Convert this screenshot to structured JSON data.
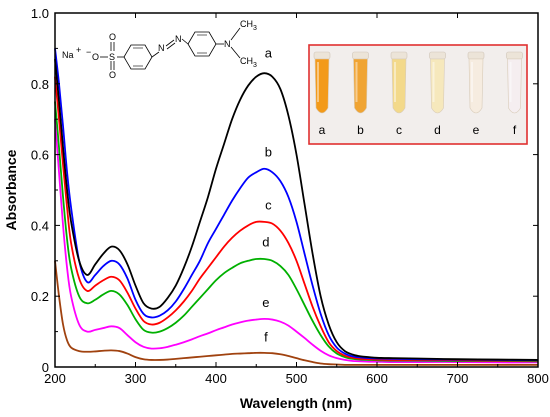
{
  "chart_data": {
    "type": "line",
    "xlabel": "Wavelength (nm)",
    "ylabel": "Absorbance",
    "xlim": [
      200,
      800
    ],
    "ylim": [
      0,
      1.0
    ],
    "xticks": [
      200,
      300,
      400,
      500,
      600,
      700,
      800
    ],
    "yticks": [
      0,
      0.2,
      0.4,
      0.6,
      0.8,
      1.0
    ],
    "ytick_labels": [
      "0",
      "0.2",
      "0.4",
      "0.6",
      "0.8",
      "1.0"
    ],
    "x": [
      200,
      205,
      210,
      215,
      220,
      230,
      240,
      250,
      260,
      270,
      280,
      290,
      300,
      310,
      320,
      330,
      340,
      350,
      360,
      370,
      380,
      390,
      400,
      410,
      420,
      430,
      440,
      450,
      460,
      470,
      480,
      490,
      500,
      510,
      520,
      530,
      540,
      550,
      560,
      570,
      580,
      590,
      600,
      620,
      650,
      700,
      750,
      800
    ],
    "series": [
      {
        "name": "a",
        "color": "#000000",
        "values": [
          0.87,
          0.75,
          0.62,
          0.5,
          0.41,
          0.3,
          0.26,
          0.29,
          0.32,
          0.34,
          0.33,
          0.29,
          0.23,
          0.18,
          0.165,
          0.17,
          0.195,
          0.23,
          0.28,
          0.34,
          0.41,
          0.48,
          0.56,
          0.63,
          0.7,
          0.755,
          0.795,
          0.82,
          0.83,
          0.82,
          0.785,
          0.71,
          0.6,
          0.46,
          0.32,
          0.2,
          0.12,
          0.07,
          0.045,
          0.035,
          0.03,
          0.028,
          0.026,
          0.025,
          0.024,
          0.022,
          0.021,
          0.02
        ]
      },
      {
        "name": "b",
        "color": "#0000ff",
        "values": [
          0.9,
          0.8,
          0.68,
          0.55,
          0.45,
          0.3,
          0.24,
          0.26,
          0.285,
          0.3,
          0.29,
          0.25,
          0.19,
          0.15,
          0.14,
          0.145,
          0.16,
          0.185,
          0.22,
          0.26,
          0.3,
          0.35,
          0.39,
          0.43,
          0.47,
          0.505,
          0.535,
          0.55,
          0.56,
          0.55,
          0.525,
          0.48,
          0.41,
          0.32,
          0.23,
          0.15,
          0.09,
          0.055,
          0.038,
          0.03,
          0.027,
          0.025,
          0.024,
          0.023,
          0.022,
          0.021,
          0.02,
          0.019
        ]
      },
      {
        "name": "c",
        "color": "#ff0000",
        "values": [
          0.82,
          0.7,
          0.57,
          0.45,
          0.35,
          0.25,
          0.215,
          0.23,
          0.245,
          0.255,
          0.245,
          0.21,
          0.165,
          0.13,
          0.12,
          0.125,
          0.14,
          0.16,
          0.185,
          0.215,
          0.25,
          0.28,
          0.31,
          0.34,
          0.365,
          0.385,
          0.4,
          0.41,
          0.41,
          0.405,
          0.385,
          0.35,
          0.3,
          0.235,
          0.17,
          0.115,
          0.07,
          0.045,
          0.032,
          0.026,
          0.023,
          0.022,
          0.021,
          0.02,
          0.02,
          0.019,
          0.018,
          0.018
        ]
      },
      {
        "name": "d",
        "color": "#00b000",
        "values": [
          0.75,
          0.62,
          0.48,
          0.36,
          0.28,
          0.2,
          0.18,
          0.19,
          0.205,
          0.215,
          0.205,
          0.175,
          0.135,
          0.105,
          0.097,
          0.1,
          0.11,
          0.125,
          0.145,
          0.17,
          0.195,
          0.22,
          0.245,
          0.265,
          0.28,
          0.293,
          0.3,
          0.305,
          0.305,
          0.3,
          0.285,
          0.26,
          0.22,
          0.175,
          0.13,
          0.09,
          0.058,
          0.038,
          0.028,
          0.023,
          0.021,
          0.02,
          0.019,
          0.018,
          0.018,
          0.017,
          0.017,
          0.016
        ]
      },
      {
        "name": "e",
        "color": "#ff00ff",
        "values": [
          0.7,
          0.55,
          0.4,
          0.28,
          0.2,
          0.12,
          0.1,
          0.105,
          0.11,
          0.115,
          0.11,
          0.09,
          0.07,
          0.057,
          0.052,
          0.053,
          0.057,
          0.063,
          0.07,
          0.078,
          0.087,
          0.095,
          0.104,
          0.112,
          0.12,
          0.126,
          0.131,
          0.134,
          0.136,
          0.134,
          0.128,
          0.117,
          0.1,
          0.082,
          0.063,
          0.046,
          0.033,
          0.025,
          0.02,
          0.017,
          0.016,
          0.015,
          0.015,
          0.014,
          0.014,
          0.014,
          0.013,
          0.013
        ]
      },
      {
        "name": "f",
        "color": "#a0420f",
        "values": [
          0.3,
          0.2,
          0.12,
          0.075,
          0.055,
          0.045,
          0.043,
          0.044,
          0.046,
          0.047,
          0.045,
          0.038,
          0.028,
          0.022,
          0.02,
          0.02,
          0.021,
          0.023,
          0.025,
          0.027,
          0.029,
          0.031,
          0.033,
          0.035,
          0.037,
          0.038,
          0.039,
          0.04,
          0.04,
          0.039,
          0.036,
          0.031,
          0.025,
          0.019,
          0.014,
          0.01,
          0.008,
          0.007,
          0.006,
          0.006,
          0.006,
          0.006,
          0.006,
          0.006,
          0.006,
          0.006,
          0.006,
          0.006
        ]
      }
    ],
    "series_label_points": [
      {
        "name": "a",
        "x": 465,
        "y": 0.875
      },
      {
        "name": "b",
        "x": 465,
        "y": 0.595
      },
      {
        "name": "c",
        "x": 465,
        "y": 0.445
      },
      {
        "name": "d",
        "x": 462,
        "y": 0.34
      },
      {
        "name": "e",
        "x": 462,
        "y": 0.17
      },
      {
        "name": "f",
        "x": 462,
        "y": 0.072
      }
    ],
    "grid": false
  },
  "structure_inset": {
    "na": "Na",
    "na_charge": "+",
    "o_charge": "−",
    "o_minus": "O",
    "sulfur": "S",
    "oxy_top": "O",
    "oxy_bottom": "O",
    "azo_n1": "N",
    "azo_n2": "N",
    "amine_n": "N",
    "ch3_top": "CH",
    "ch3_top_sub": "3",
    "ch3_bottom": "CH",
    "ch3_bottom_sub": "3"
  },
  "photo_inset": {
    "border_color": "#e03030",
    "vials": [
      {
        "label": "a",
        "color": "#f39a1a"
      },
      {
        "label": "b",
        "color": "#f0a433"
      },
      {
        "label": "c",
        "color": "#f3d98a"
      },
      {
        "label": "d",
        "color": "#f6e8bc"
      },
      {
        "label": "e",
        "color": "#f6ece0"
      },
      {
        "label": "f",
        "color": "#f5eef0"
      }
    ]
  }
}
